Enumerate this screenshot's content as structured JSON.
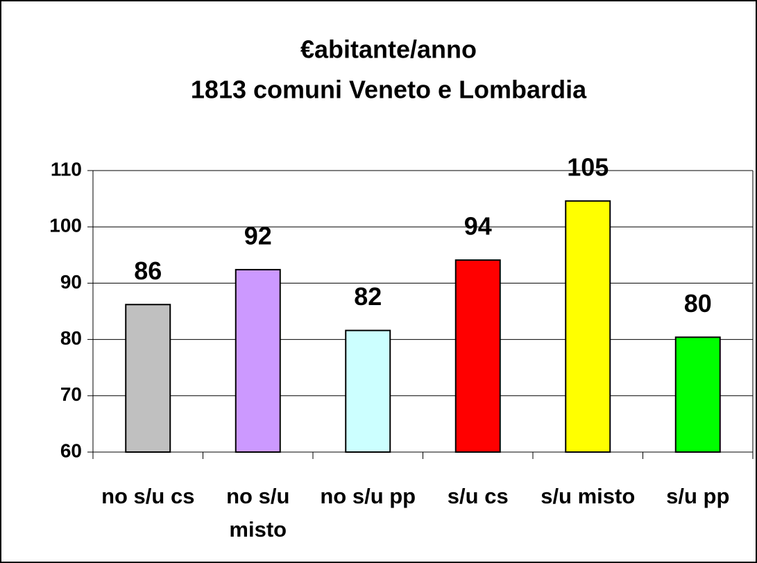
{
  "chart_data": {
    "type": "bar",
    "title": [
      "€abitante/anno",
      "1813 comuni Veneto e Lombardia"
    ],
    "categories": [
      "no s/u cs",
      "no s/u misto",
      "no s/u pp",
      "s/u cs",
      "s/u misto",
      "s/u pp"
    ],
    "values": [
      86.2,
      92.4,
      81.6,
      94.1,
      104.6,
      80.4
    ],
    "value_labels": [
      "86",
      "92",
      "82",
      "94",
      "105",
      "80"
    ],
    "colors": [
      "#c0c0c0",
      "#cc99ff",
      "#ccffff",
      "#ff0000",
      "#ffff00",
      "#00ff00"
    ],
    "ylim": [
      60,
      110
    ],
    "yticks": [
      60,
      70,
      80,
      90,
      100,
      110
    ],
    "grid": true
  }
}
